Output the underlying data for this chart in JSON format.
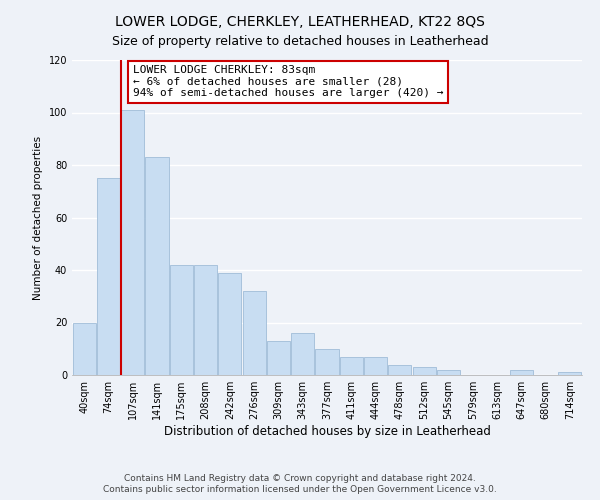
{
  "title": "LOWER LODGE, CHERKLEY, LEATHERHEAD, KT22 8QS",
  "subtitle": "Size of property relative to detached houses in Leatherhead",
  "xlabel": "Distribution of detached houses by size in Leatherhead",
  "ylabel": "Number of detached properties",
  "bar_labels": [
    "40sqm",
    "74sqm",
    "107sqm",
    "141sqm",
    "175sqm",
    "208sqm",
    "242sqm",
    "276sqm",
    "309sqm",
    "343sqm",
    "377sqm",
    "411sqm",
    "444sqm",
    "478sqm",
    "512sqm",
    "545sqm",
    "579sqm",
    "613sqm",
    "647sqm",
    "680sqm",
    "714sqm"
  ],
  "bar_values": [
    20,
    75,
    101,
    83,
    42,
    42,
    39,
    32,
    13,
    16,
    10,
    7,
    7,
    4,
    3,
    2,
    0,
    0,
    2,
    0,
    1
  ],
  "bar_color": "#c8ddf2",
  "bar_edge_color": "#a0bcd8",
  "highlight_line_color": "#cc0000",
  "ylim": [
    0,
    120
  ],
  "yticks": [
    0,
    20,
    40,
    60,
    80,
    100,
    120
  ],
  "annotation_title": "LOWER LODGE CHERKLEY: 83sqm",
  "annotation_line1": "← 6% of detached houses are smaller (28)",
  "annotation_line2": "94% of semi-detached houses are larger (420) →",
  "annotation_box_color": "#ffffff",
  "annotation_box_edge": "#cc0000",
  "footer_line1": "Contains HM Land Registry data © Crown copyright and database right 2024.",
  "footer_line2": "Contains public sector information licensed under the Open Government Licence v3.0.",
  "background_color": "#eef2f8",
  "plot_background_color": "#eef2f8",
  "grid_color": "#ffffff",
  "title_fontsize": 10,
  "subtitle_fontsize": 9,
  "xlabel_fontsize": 8.5,
  "ylabel_fontsize": 7.5,
  "tick_fontsize": 7,
  "footer_fontsize": 6.5,
  "ann_fontsize": 8
}
